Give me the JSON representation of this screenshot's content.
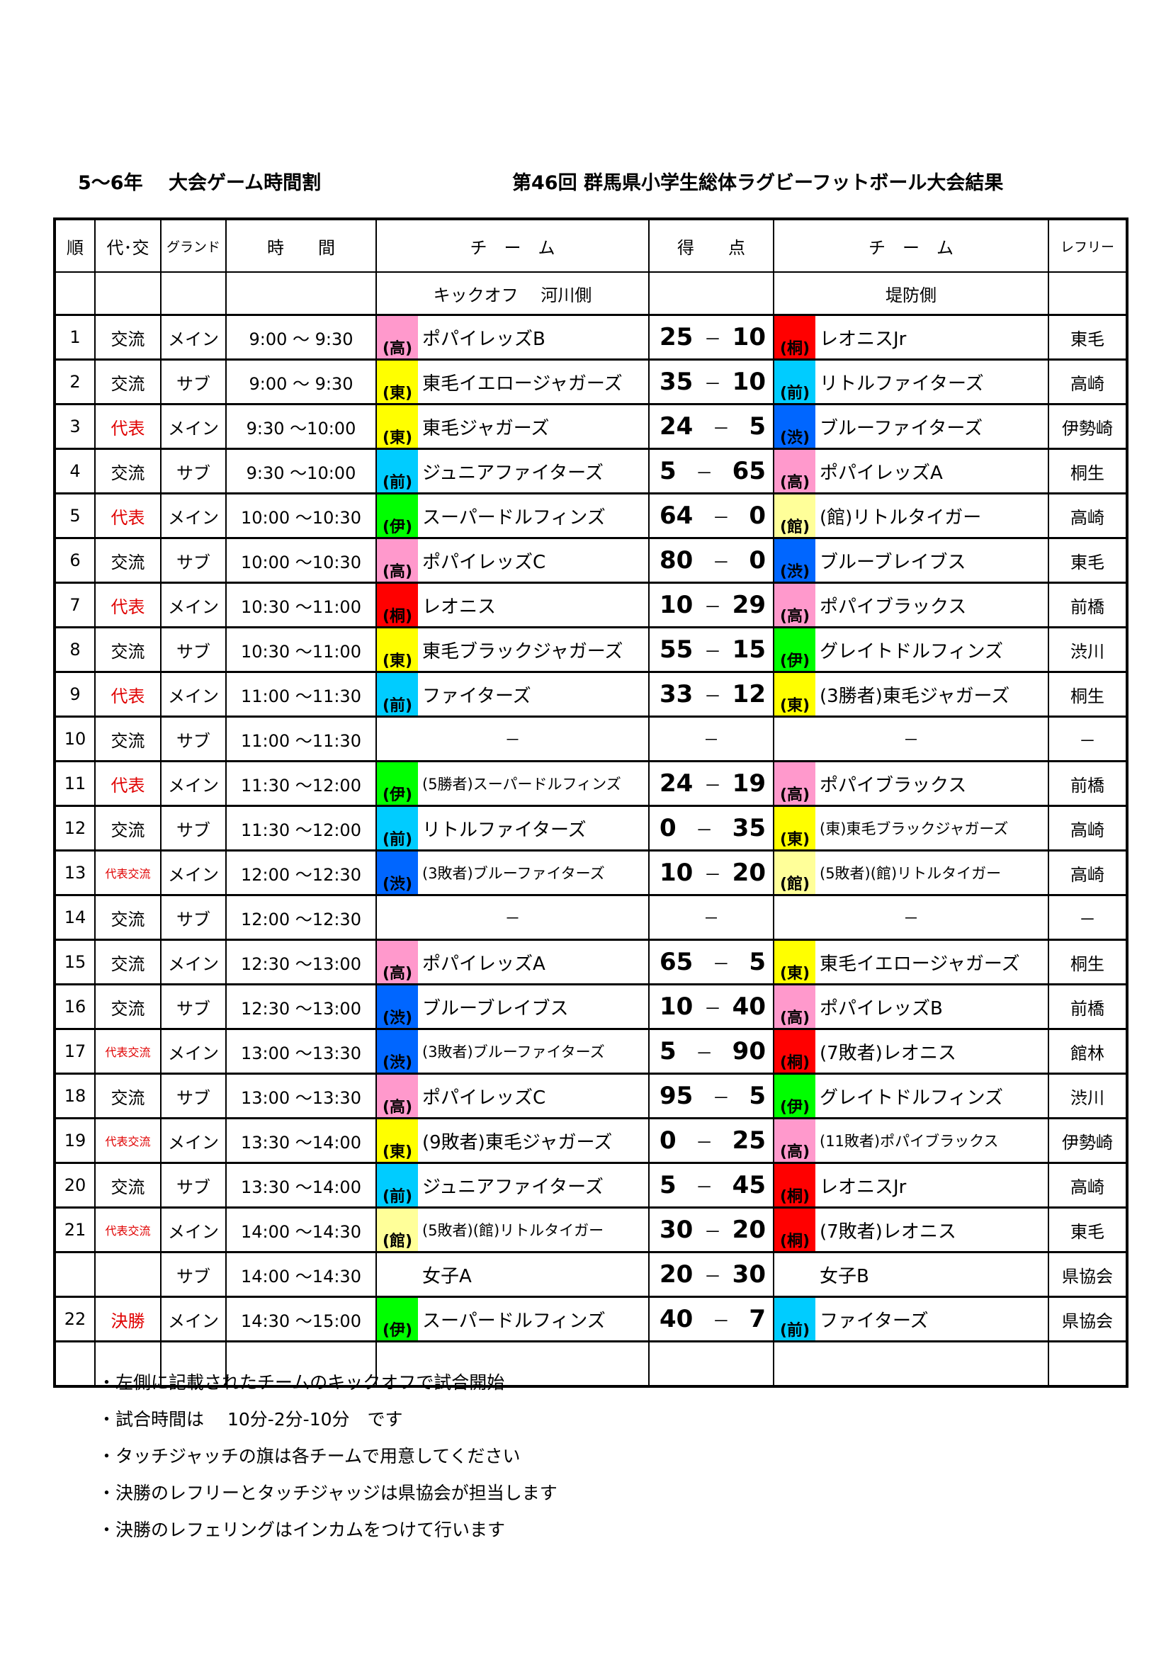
{
  "header": {
    "left_title": "5～6年　 大会ゲーム時間割",
    "right_title": "第46回 群馬県小学生総体ラグビーフットボール大会結果"
  },
  "columns": [
    "順",
    "代･交",
    "グランド",
    "時　　間",
    "チ　ー　ム",
    "得　　点",
    "チ　ー　ム",
    "レフリー"
  ],
  "subheader": {
    "left": "キックオフ　 河川側",
    "right": "堤防側"
  },
  "tag_colors": {
    "高": "#ff99cc",
    "東": "#ffff00",
    "前": "#00ccff",
    "渋": "#0066ff",
    "伊": "#00ff00",
    "桐": "#ff0000",
    "館": "#ffff99"
  },
  "rows": [
    {
      "no": "1",
      "type": "交流",
      "ground": "メイン",
      "time": "9:00 ～ 9:30",
      "left_tag": "高",
      "left": "ポパイレッズB",
      "score_l": "25",
      "score_r": "10",
      "right_tag": "桐",
      "right": "レオニスJr",
      "ref": "東毛"
    },
    {
      "no": "2",
      "type": "交流",
      "ground": "サブ",
      "time": "9:00 ～ 9:30",
      "left_tag": "東",
      "left": "東毛イエロージャガーズ",
      "score_l": "35",
      "score_r": "10",
      "right_tag": "前",
      "right": "リトルファイターズ",
      "ref": "高崎"
    },
    {
      "no": "3",
      "type": "代表",
      "ground": "メイン",
      "time": "9:30 ～10:00",
      "left_tag": "東",
      "left": "東毛ジャガーズ",
      "score_l": "24",
      "score_r": "5",
      "right_tag": "渋",
      "right": "ブルーファイターズ",
      "ref": "伊勢崎"
    },
    {
      "no": "4",
      "type": "交流",
      "ground": "サブ",
      "time": "9:30 ～10:00",
      "left_tag": "前",
      "left": "ジュニアファイターズ",
      "score_l": "5",
      "score_r": "65",
      "right_tag": "高",
      "right": "ポパイレッズA",
      "ref": "桐生"
    },
    {
      "no": "5",
      "type": "代表",
      "ground": "メイン",
      "time": "10:00 ～10:30",
      "left_tag": "伊",
      "left": "スーパードルフィンズ",
      "score_l": "64",
      "score_r": "0",
      "right_tag": "館",
      "right": "(館)リトルタイガー",
      "ref": "高崎"
    },
    {
      "no": "6",
      "type": "交流",
      "ground": "サブ",
      "time": "10:00 ～10:30",
      "left_tag": "高",
      "left": "ポパイレッズC",
      "score_l": "80",
      "score_r": "0",
      "right_tag": "渋",
      "right": "ブルーブレイブス",
      "ref": "東毛"
    },
    {
      "no": "7",
      "type": "代表",
      "ground": "メイン",
      "time": "10:30 ～11:00",
      "left_tag": "桐",
      "left": "レオニス",
      "score_l": "10",
      "score_r": "29",
      "right_tag": "高",
      "right": "ポパイブラックス",
      "ref": "前橋"
    },
    {
      "no": "8",
      "type": "交流",
      "ground": "サブ",
      "time": "10:30 ～11:00",
      "left_tag": "東",
      "left": "東毛ブラックジャガーズ",
      "score_l": "55",
      "score_r": "15",
      "right_tag": "伊",
      "right": "グレイトドルフィンズ",
      "ref": "渋川"
    },
    {
      "no": "9",
      "type": "代表",
      "ground": "メイン",
      "time": "11:00 ～11:30",
      "left_tag": "前",
      "left": "ファイターズ",
      "score_l": "33",
      "score_r": "12",
      "right_tag": "東",
      "right": "(3勝者)東毛ジャガーズ",
      "ref": "桐生"
    },
    {
      "no": "10",
      "type": "交流",
      "ground": "サブ",
      "time": "11:00 ～11:30",
      "left_tag": "",
      "left": "－",
      "score_l": "",
      "score_r": "",
      "score_dash": "－",
      "right_tag": "",
      "right": "－",
      "ref": "－",
      "empty": true
    },
    {
      "no": "11",
      "type": "代表",
      "ground": "メイン",
      "time": "11:30 ～12:00",
      "left_tag": "伊",
      "left": "(5勝者)スーパードルフィンズ",
      "score_l": "24",
      "score_r": "19",
      "right_tag": "高",
      "right": "ポパイブラックス",
      "ref": "前橋"
    },
    {
      "no": "12",
      "type": "交流",
      "ground": "サブ",
      "time": "11:30 ～12:00",
      "left_tag": "前",
      "left": "リトルファイターズ",
      "score_l": "0",
      "score_r": "35",
      "right_tag": "東",
      "right": "(東)東毛ブラックジャガーズ",
      "ref": "高崎"
    },
    {
      "no": "13",
      "type": "代表交流",
      "ground": "メイン",
      "time": "12:00 ～12:30",
      "left_tag": "渋",
      "left": "(3敗者)ブルーファイターズ",
      "score_l": "10",
      "score_r": "20",
      "right_tag": "館",
      "right": "(5敗者)(館)リトルタイガー",
      "ref": "高崎"
    },
    {
      "no": "14",
      "type": "交流",
      "ground": "サブ",
      "time": "12:00 ～12:30",
      "left_tag": "",
      "left": "－",
      "score_l": "",
      "score_r": "",
      "score_dash": "－",
      "right_tag": "",
      "right": "－",
      "ref": "－",
      "empty": true
    },
    {
      "no": "15",
      "type": "交流",
      "ground": "メイン",
      "time": "12:30 ～13:00",
      "left_tag": "高",
      "left": "ポパイレッズA",
      "score_l": "65",
      "score_r": "5",
      "right_tag": "東",
      "right": "東毛イエロージャガーズ",
      "ref": "桐生"
    },
    {
      "no": "16",
      "type": "交流",
      "ground": "サブ",
      "time": "12:30 ～13:00",
      "left_tag": "渋",
      "left": "ブルーブレイブス",
      "score_l": "10",
      "score_r": "40",
      "right_tag": "高",
      "right": "ポパイレッズB",
      "ref": "前橋"
    },
    {
      "no": "17",
      "type": "代表交流",
      "ground": "メイン",
      "time": "13:00 ～13:30",
      "left_tag": "渋",
      "left": "(3敗者)ブルーファイターズ",
      "score_l": "5",
      "score_r": "90",
      "right_tag": "桐",
      "right": "(7敗者)レオニス",
      "ref": "館林"
    },
    {
      "no": "18",
      "type": "交流",
      "ground": "サブ",
      "time": "13:00 ～13:30",
      "left_tag": "高",
      "left": "ポパイレッズC",
      "score_l": "95",
      "score_r": "5",
      "right_tag": "伊",
      "right": "グレイトドルフィンズ",
      "ref": "渋川"
    },
    {
      "no": "19",
      "type": "代表交流",
      "ground": "メイン",
      "time": "13:30 ～14:00",
      "left_tag": "東",
      "left": "(9敗者)東毛ジャガーズ",
      "score_l": "0",
      "score_r": "25",
      "right_tag": "高",
      "right": "(11敗者)ポパイブラックス",
      "ref": "伊勢崎"
    },
    {
      "no": "20",
      "type": "交流",
      "ground": "サブ",
      "time": "13:30 ～14:00",
      "left_tag": "前",
      "left": "ジュニアファイターズ",
      "score_l": "5",
      "score_r": "45",
      "right_tag": "桐",
      "right": "レオニスJr",
      "ref": "高崎"
    },
    {
      "no": "21",
      "type": "代表交流",
      "ground": "メイン",
      "time": "14:00 ～14:30",
      "left_tag": "館",
      "left": "(5敗者)(館)リトルタイガー",
      "score_l": "30",
      "score_r": "20",
      "right_tag": "桐",
      "right": "(7敗者)レオニス",
      "ref": "東毛"
    },
    {
      "no": "",
      "type": "",
      "ground": "サブ",
      "time": "14:00 ～14:30",
      "left_tag": "",
      "left": "女子A",
      "score_l": "20",
      "score_r": "30",
      "right_tag": "",
      "right": "女子B",
      "ref": "県協会"
    },
    {
      "no": "22",
      "type": "決勝",
      "ground": "メイン",
      "time": "14:30 ～15:00",
      "left_tag": "伊",
      "left": "スーパードルフィンズ",
      "score_l": "40",
      "score_r": "7",
      "right_tag": "前",
      "right": "ファイターズ",
      "ref": "県協会"
    },
    {
      "no": "",
      "type": "",
      "ground": "",
      "time": "",
      "left_tag": "",
      "left": "",
      "score_l": "",
      "score_r": "",
      "right_tag": "",
      "right": "",
      "ref": "",
      "blank": true
    }
  ],
  "score_separator": "－",
  "notes": [
    "・左側に記載されたチームのキックオフで試合開始",
    "・試合時間は　 10分-2分-10分　です",
    "・タッチジャッチの旗は各チームで用意してください",
    "・決勝のレフリーとタッチジャッジは県協会が担当します",
    "・決勝のレフェリングはインカムをつけて行います"
  ]
}
